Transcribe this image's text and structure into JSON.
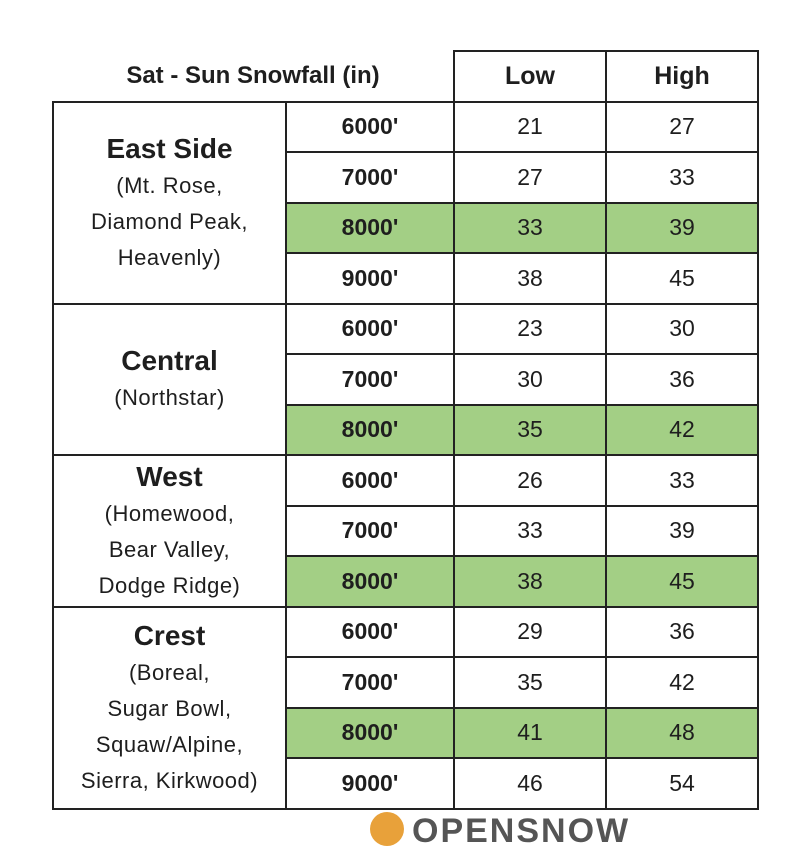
{
  "header": {
    "title": "Sat - Sun Snowfall (in)",
    "columns": [
      "Low",
      "High"
    ]
  },
  "highlight_color": "#a3cf85",
  "regions": [
    {
      "name": "East Side",
      "detail": [
        "(Mt. Rose,",
        "Diamond Peak,",
        "Heavenly)"
      ],
      "rows": [
        {
          "elevation": "6000'",
          "low": 21,
          "high": 27,
          "highlight": false
        },
        {
          "elevation": "7000'",
          "low": 27,
          "high": 33,
          "highlight": false
        },
        {
          "elevation": "8000'",
          "low": 33,
          "high": 39,
          "highlight": true
        },
        {
          "elevation": "9000'",
          "low": 38,
          "high": 45,
          "highlight": false
        }
      ]
    },
    {
      "name": "Central",
      "detail": [
        "(Northstar)"
      ],
      "rows": [
        {
          "elevation": "6000'",
          "low": 23,
          "high": 30,
          "highlight": false
        },
        {
          "elevation": "7000'",
          "low": 30,
          "high": 36,
          "highlight": false
        },
        {
          "elevation": "8000'",
          "low": 35,
          "high": 42,
          "highlight": true
        }
      ]
    },
    {
      "name": "West",
      "detail": [
        "(Homewood,",
        "Bear Valley,",
        "Dodge Ridge)"
      ],
      "rows": [
        {
          "elevation": "6000'",
          "low": 26,
          "high": 33,
          "highlight": false
        },
        {
          "elevation": "7000'",
          "low": 33,
          "high": 39,
          "highlight": false
        },
        {
          "elevation": "8000'",
          "low": 38,
          "high": 45,
          "highlight": true
        }
      ]
    },
    {
      "name": "Crest",
      "detail": [
        "(Boreal,",
        "Sugar Bowl,",
        "Squaw/Alpine,",
        "Sierra, Kirkwood)"
      ],
      "rows": [
        {
          "elevation": "6000'",
          "low": 29,
          "high": 36,
          "highlight": false
        },
        {
          "elevation": "7000'",
          "low": 35,
          "high": 42,
          "highlight": false
        },
        {
          "elevation": "8000'",
          "low": 41,
          "high": 48,
          "highlight": true
        },
        {
          "elevation": "9000'",
          "low": 46,
          "high": 54,
          "highlight": false
        }
      ]
    }
  ],
  "footer": {
    "logo": "OPENSNOW"
  }
}
